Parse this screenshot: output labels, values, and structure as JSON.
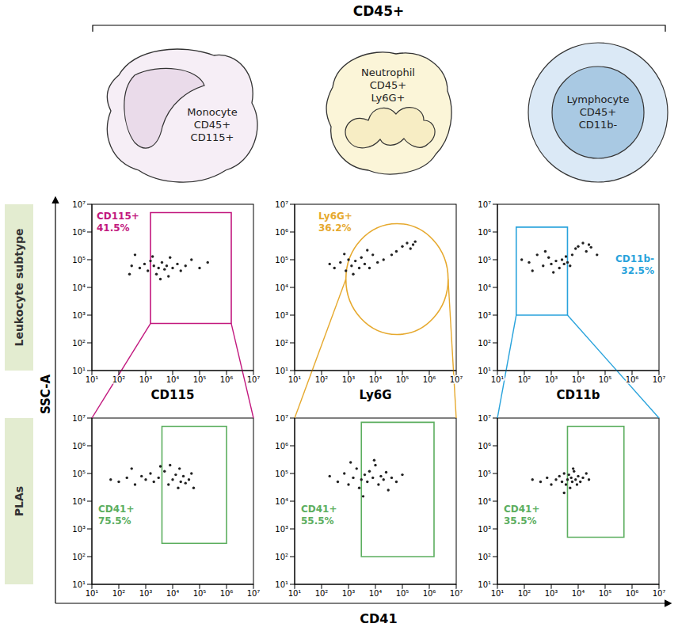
{
  "header": {
    "title": "CD45+"
  },
  "cells": [
    {
      "lines": [
        "Monocyte",
        "CD45+",
        "CD115+"
      ]
    },
    {
      "lines": [
        "Neutrophil",
        "CD45+",
        "Ly6G+"
      ]
    },
    {
      "lines": [
        "Lymphocyte",
        "CD45+",
        "CD11b-"
      ]
    }
  ],
  "row_labels": [
    "Leukocyte subtype",
    "PLAs"
  ],
  "shared_axis_titles": {
    "y": "SSC-A",
    "x_bottom": "CD41"
  },
  "chart_data": [
    {
      "type": "scatter",
      "xlabel": "CD115",
      "log": true,
      "xlim": [
        10,
        10000000
      ],
      "ylim": [
        10,
        10000000
      ],
      "xticks": [
        {
          "value": 10,
          "label": "10¹"
        },
        {
          "value": 100,
          "label": "10²"
        },
        {
          "value": 1000,
          "label": "10³"
        },
        {
          "value": 10000,
          "label": "10⁴"
        },
        {
          "value": 100000,
          "label": "10⁵"
        },
        {
          "value": 1000000,
          "label": "10⁶"
        },
        {
          "value": 10000000,
          "label": "10⁷"
        }
      ],
      "yticks": [
        {
          "value": 10,
          "label": "10¹"
        },
        {
          "value": 100,
          "label": "10²"
        },
        {
          "value": 1000,
          "label": "10³"
        },
        {
          "value": 10000,
          "label": "10⁴"
        },
        {
          "value": 100000,
          "label": "10⁵"
        },
        {
          "value": 1000000,
          "label": "10⁶"
        },
        {
          "value": 10000000,
          "label": "10⁷"
        }
      ],
      "x": [
        300,
        600,
        900,
        1200,
        1500,
        2000,
        2500,
        3000,
        4000,
        5000,
        6000,
        8000,
        10000,
        15000,
        20000,
        30000,
        50000,
        100000,
        200000,
        400,
        3500,
        7000,
        1800,
        250
      ],
      "values": [
        60000,
        50000,
        70000,
        40000,
        90000,
        60000,
        30000,
        50000,
        80000,
        45000,
        60000,
        120000,
        50000,
        70000,
        40000,
        60000,
        100000,
        50000,
        80000,
        150000,
        20000,
        25000,
        130000,
        30000
      ],
      "color": "#222222",
      "gate": {
        "shape": "rectangle",
        "x": [
          1500,
          1500000
        ],
        "y": [
          500,
          5000000
        ],
        "color": "#c2187e",
        "text": [
          "CD115+",
          "41.5%"
        ]
      }
    },
    {
      "type": "scatter",
      "xlabel": "Ly6G",
      "log": true,
      "xlim": [
        10,
        10000000
      ],
      "ylim": [
        10,
        10000000
      ],
      "xticks": [
        {
          "value": 10,
          "label": "10¹"
        },
        {
          "value": 100,
          "label": "10²"
        },
        {
          "value": 1000,
          "label": "10³"
        },
        {
          "value": 10000,
          "label": "10⁴"
        },
        {
          "value": 100000,
          "label": "10⁵"
        },
        {
          "value": 1000000,
          "label": "10⁶"
        },
        {
          "value": 10000000,
          "label": "10⁷"
        }
      ],
      "yticks": [
        {
          "value": 10,
          "label": "10¹"
        },
        {
          "value": 100,
          "label": "10²"
        },
        {
          "value": 1000,
          "label": "10³"
        },
        {
          "value": 10000,
          "label": "10⁴"
        },
        {
          "value": 100000,
          "label": "10⁵"
        },
        {
          "value": 1000000,
          "label": "10⁶"
        },
        {
          "value": 10000000,
          "label": "10⁷"
        }
      ],
      "x": [
        300,
        500,
        800,
        1000,
        1300,
        1800,
        2500,
        3000,
        4000,
        6000,
        8000,
        12000,
        20000,
        40000,
        60000,
        100000,
        150000,
        200000,
        250000,
        300000,
        200,
        700,
        1500,
        5000
      ],
      "values": [
        50000,
        80000,
        40000,
        100000,
        60000,
        90000,
        50000,
        120000,
        70000,
        50000,
        150000,
        80000,
        100000,
        150000,
        200000,
        300000,
        400000,
        250000,
        350000,
        450000,
        70000,
        160000,
        30000,
        220000
      ],
      "color": "#222222",
      "gate": {
        "shape": "ellipse",
        "x": [
          800,
          5000000
        ],
        "y": [
          200,
          2000000
        ],
        "color": "#e6a92e",
        "text": [
          "Ly6G+",
          "36.2%"
        ]
      }
    },
    {
      "type": "scatter",
      "xlabel": "CD11b",
      "log": true,
      "xlim": [
        10,
        10000000
      ],
      "ylim": [
        10,
        10000000
      ],
      "xticks": [
        {
          "value": 10,
          "label": "10¹"
        },
        {
          "value": 100,
          "label": "10²"
        },
        {
          "value": 1000,
          "label": "10³"
        },
        {
          "value": 10000,
          "label": "10⁴"
        },
        {
          "value": 100000,
          "label": "10⁵"
        },
        {
          "value": 1000000,
          "label": "10⁶"
        },
        {
          "value": 10000000,
          "label": "10⁷"
        }
      ],
      "yticks": [
        {
          "value": 10,
          "label": "10¹"
        },
        {
          "value": 100,
          "label": "10²"
        },
        {
          "value": 1000,
          "label": "10³"
        },
        {
          "value": 10000,
          "label": "10⁴"
        },
        {
          "value": 100000,
          "label": "10⁵"
        },
        {
          "value": 1000000,
          "label": "10⁶"
        },
        {
          "value": 10000000,
          "label": "10⁷"
        }
      ],
      "x": [
        80,
        150,
        300,
        500,
        800,
        1000,
        1500,
        2000,
        2500,
        3000,
        3500,
        4000,
        5000,
        6000,
        8000,
        10000,
        15000,
        20000,
        25000,
        30000,
        50000,
        200,
        600,
        1200
      ],
      "values": [
        100000,
        80000,
        150000,
        60000,
        120000,
        70000,
        90000,
        50000,
        100000,
        70000,
        130000,
        80000,
        60000,
        150000,
        250000,
        300000,
        400000,
        200000,
        350000,
        280000,
        150000,
        40000,
        200000,
        35000
      ],
      "color": "#222222",
      "gate": {
        "shape": "rectangle",
        "x": [
          50,
          4000
        ],
        "y": [
          1000,
          1500000
        ],
        "color": "#29a3dc",
        "text": [
          "CD11b-",
          "32.5%"
        ]
      }
    },
    {
      "type": "scatter",
      "log": true,
      "xlim": [
        10,
        10000000
      ],
      "ylim": [
        10,
        10000000
      ],
      "xticks": [
        {
          "value": 10,
          "label": "10¹"
        },
        {
          "value": 100,
          "label": "10²"
        },
        {
          "value": 1000,
          "label": "10³"
        },
        {
          "value": 10000,
          "label": "10⁴"
        },
        {
          "value": 100000,
          "label": "10⁵"
        },
        {
          "value": 1000000,
          "label": "10⁶"
        },
        {
          "value": 10000000,
          "label": "10⁷"
        }
      ],
      "yticks": [
        {
          "value": 10,
          "label": "10¹"
        },
        {
          "value": 100,
          "label": "10²"
        },
        {
          "value": 1000,
          "label": "10³"
        },
        {
          "value": 10000,
          "label": "10⁴"
        },
        {
          "value": 100000,
          "label": "10⁵"
        },
        {
          "value": 1000000,
          "label": "10⁶"
        },
        {
          "value": 10000000,
          "label": "10⁷"
        }
      ],
      "x": [
        50,
        100,
        200,
        400,
        700,
        1000,
        1500,
        2000,
        3000,
        5000,
        7000,
        10000,
        13000,
        16000,
        20000,
        25000,
        30000,
        40000,
        50000,
        60000,
        3500,
        8000,
        300,
        18000
      ],
      "values": [
        60000,
        50000,
        70000,
        40000,
        80000,
        60000,
        100000,
        50000,
        70000,
        120000,
        40000,
        60000,
        90000,
        30000,
        50000,
        80000,
        45000,
        60000,
        100000,
        30000,
        180000,
        200000,
        150000,
        150000
      ],
      "color": "#222222",
      "gate": {
        "shape": "rectangle",
        "x": [
          4000,
          1000000
        ],
        "y": [
          300,
          5000000
        ],
        "color": "#5cae5f",
        "text": [
          "CD41+",
          "75.5%"
        ]
      }
    },
    {
      "type": "scatter",
      "log": true,
      "xlim": [
        10,
        10000000
      ],
      "ylim": [
        10,
        10000000
      ],
      "xticks": [
        {
          "value": 10,
          "label": "10¹"
        },
        {
          "value": 100,
          "label": "10²"
        },
        {
          "value": 1000,
          "label": "10³"
        },
        {
          "value": 10000,
          "label": "10⁴"
        },
        {
          "value": 100000,
          "label": "10⁵"
        },
        {
          "value": 1000000,
          "label": "10⁶"
        },
        {
          "value": 10000000,
          "label": "10⁷"
        }
      ],
      "yticks": [
        {
          "value": 10,
          "label": "10¹"
        },
        {
          "value": 100,
          "label": "10²"
        },
        {
          "value": 1000,
          "label": "10³"
        },
        {
          "value": 10000,
          "label": "10⁴"
        },
        {
          "value": 100000,
          "label": "10⁵"
        },
        {
          "value": 1000000,
          "label": "10⁶"
        },
        {
          "value": 10000000,
          "label": "10⁷"
        }
      ],
      "x": [
        200,
        400,
        700,
        1000,
        1500,
        2000,
        2500,
        3000,
        4000,
        5000,
        6000,
        8000,
        10000,
        13000,
        16000,
        20000,
        25000,
        30000,
        40000,
        60000,
        100000,
        1200,
        3500,
        9000
      ],
      "values": [
        80000,
        50000,
        100000,
        40000,
        70000,
        150000,
        30000,
        60000,
        90000,
        50000,
        120000,
        70000,
        200000,
        40000,
        80000,
        60000,
        110000,
        25000,
        70000,
        50000,
        90000,
        250000,
        15000,
        300000
      ],
      "color": "#222222",
      "gate": {
        "shape": "rectangle",
        "x": [
          3000,
          1500000
        ],
        "y": [
          100,
          7000000
        ],
        "color": "#5cae5f",
        "text": [
          "CD41+",
          "55.5%"
        ]
      }
    },
    {
      "type": "scatter",
      "log": true,
      "xlim": [
        10,
        10000000
      ],
      "ylim": [
        10,
        10000000
      ],
      "xticks": [
        {
          "value": 10,
          "label": "10¹"
        },
        {
          "value": 100,
          "label": "10²"
        },
        {
          "value": 1000,
          "label": "10³"
        },
        {
          "value": 10000,
          "label": "10⁴"
        },
        {
          "value": 100000,
          "label": "10⁵"
        },
        {
          "value": 1000000,
          "label": "10⁶"
        },
        {
          "value": 10000000,
          "label": "10⁷"
        }
      ],
      "yticks": [
        {
          "value": 10,
          "label": "10¹"
        },
        {
          "value": 100,
          "label": "10²"
        },
        {
          "value": 1000,
          "label": "10³"
        },
        {
          "value": 10000,
          "label": "10⁴"
        },
        {
          "value": 100000,
          "label": "10⁵"
        },
        {
          "value": 1000000,
          "label": "10⁶"
        },
        {
          "value": 10000000,
          "label": "10⁷"
        }
      ],
      "x": [
        200,
        400,
        700,
        1000,
        1500,
        2000,
        2500,
        3000,
        3500,
        4000,
        4500,
        5000,
        5500,
        6000,
        7000,
        8000,
        9000,
        10000,
        12000,
        15000,
        20000,
        25000,
        3000,
        6500
      ],
      "values": [
        60000,
        50000,
        70000,
        40000,
        60000,
        80000,
        50000,
        100000,
        40000,
        60000,
        90000,
        30000,
        70000,
        50000,
        120000,
        60000,
        40000,
        80000,
        50000,
        70000,
        100000,
        60000,
        20000,
        150000
      ],
      "color": "#222222",
      "gate": {
        "shape": "rectangle",
        "x": [
          4000,
          500000
        ],
        "y": [
          500,
          5000000
        ],
        "color": "#5cae5f",
        "text": [
          "CD41+",
          "35.5%"
        ]
      }
    }
  ]
}
